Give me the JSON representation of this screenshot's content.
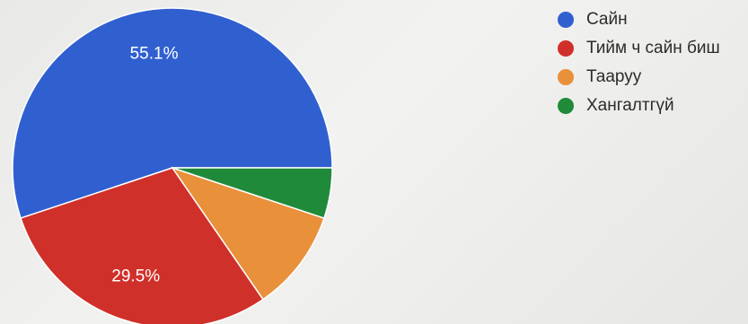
{
  "chart_data": {
    "type": "pie",
    "start_angle_deg": 0,
    "direction": "counterclockwise",
    "slices": [
      {
        "name": "Сайн",
        "value": 55.1,
        "label": "55.1%",
        "color": "#3060d0"
      },
      {
        "name": "Тийм ч сайн биш",
        "value": 29.5,
        "label": "29.5%",
        "color": "#d0302a"
      },
      {
        "name": "Тааруу",
        "value": 10.3,
        "label": "",
        "color": "#e8903a"
      },
      {
        "name": "Хангалтгүй",
        "value": 5.1,
        "label": "",
        "color": "#1f8a3a"
      }
    ],
    "legend_position": "top-right"
  }
}
